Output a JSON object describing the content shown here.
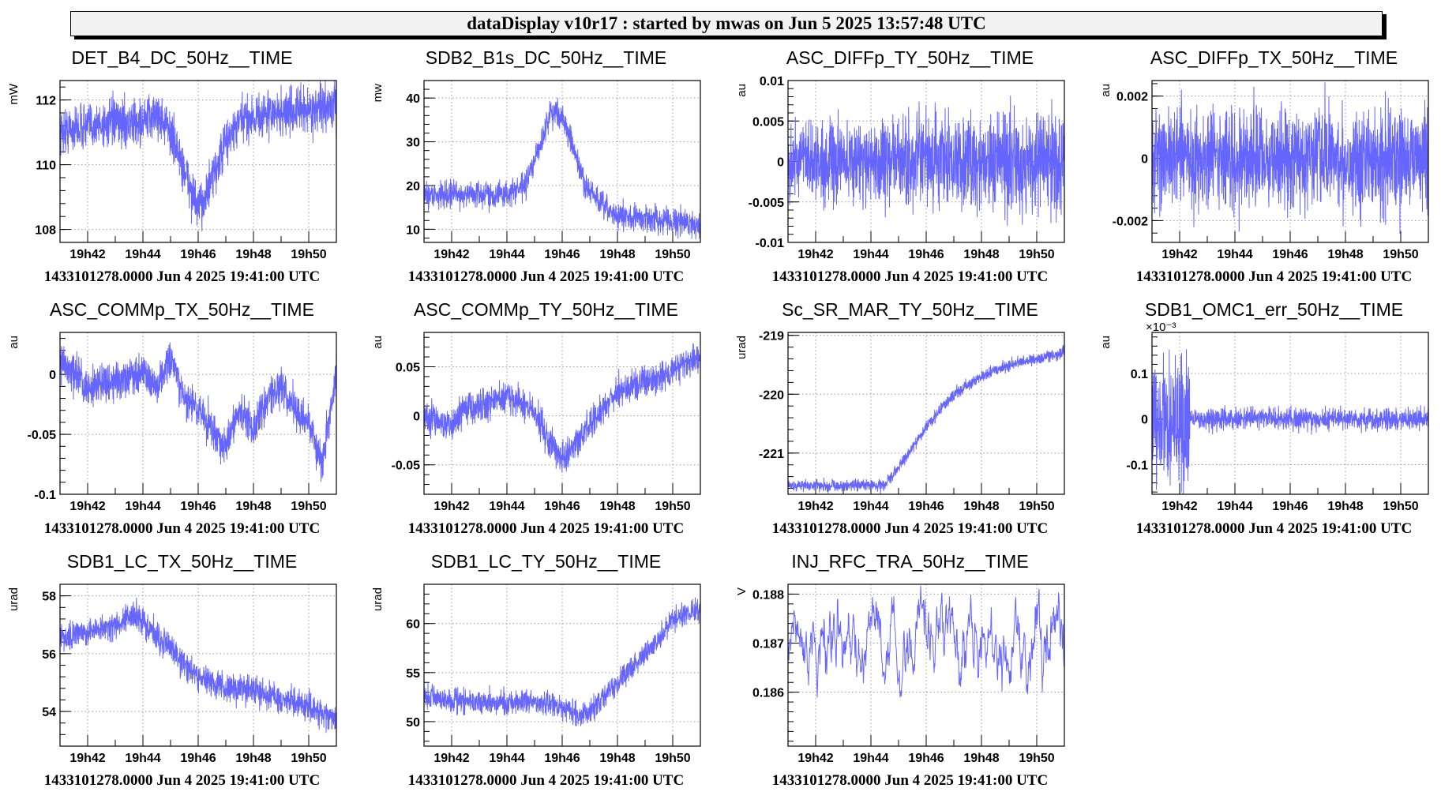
{
  "window_title": "dataDisplay v10r17 : started by mwas on Jun  5 2025 13:57:48 UTC",
  "line_color": "#6666ff",
  "chart_data": [
    {
      "type": "line",
      "title": "DET_B4_DC_50Hz__TIME",
      "ylabel": "mW",
      "footer": "1433101278.0000 Jun 4 2025 19:41:00 UTC",
      "xlim": [
        "19:41",
        "19:51"
      ],
      "xticks": [
        "19h42",
        "19h44",
        "19h46",
        "19h48",
        "19h50"
      ],
      "ylim": [
        107.6,
        112.6
      ],
      "yticks": [
        108,
        110,
        112
      ],
      "ytick_labels": [
        "108",
        "110",
        "112"
      ],
      "grid": true,
      "trend": {
        "t": [
          "19:41",
          "19:42",
          "19:43",
          "19:44",
          "19:44:30",
          "19:45",
          "19:45:30",
          "19:46",
          "19:46:30",
          "19:47",
          "19:47:30",
          "19:48",
          "19:49",
          "19:50",
          "19:51"
        ],
        "y": [
          111,
          111.2,
          111.3,
          111.3,
          111.6,
          111,
          109.8,
          108.6,
          109.5,
          110.7,
          111.3,
          111.5,
          111.6,
          111.7,
          111.8
        ]
      },
      "noise": 0.35
    },
    {
      "type": "line",
      "title": "SDB2_B1s_DC_50Hz__TIME",
      "ylabel": "mw",
      "footer": "1433101278.0000 Jun 4 2025 19:41:00 UTC",
      "xlim": [
        "19:41",
        "19:51"
      ],
      "xticks": [
        "19h42",
        "19h44",
        "19h46",
        "19h48",
        "19h50"
      ],
      "ylim": [
        7,
        44
      ],
      "yticks": [
        10,
        20,
        30,
        40
      ],
      "ytick_labels": [
        "10",
        "20",
        "30",
        "40"
      ],
      "grid": true,
      "trend": {
        "t": [
          "19:41",
          "19:43",
          "19:44",
          "19:44:40",
          "19:45:15",
          "19:45:35",
          "19:46",
          "19:46:25",
          "19:46:50",
          "19:47:30",
          "19:48",
          "19:49",
          "19:50",
          "19:51"
        ],
        "y": [
          18,
          18,
          18,
          20,
          30,
          37,
          36,
          28,
          20,
          15,
          13,
          12.5,
          12,
          11
        ]
      },
      "noise": 1.5
    },
    {
      "type": "line",
      "title": "ASC_DIFFp_TY_50Hz__TIME",
      "ylabel": "au",
      "footer": "1433101278.0000 Jun 4 2025 19:41:00 UTC",
      "xlim": [
        "19:41",
        "19:51"
      ],
      "xticks": [
        "19h42",
        "19h44",
        "19h46",
        "19h48",
        "19h50"
      ],
      "ylim": [
        -0.01,
        0.01
      ],
      "yticks": [
        -0.01,
        -0.005,
        0,
        0.005,
        0.01
      ],
      "ytick_labels": [
        "-0.01",
        "-0.005",
        "0",
        "0.005",
        "0.01"
      ],
      "grid": true,
      "trend": {
        "t": [
          "19:41",
          "19:51"
        ],
        "y": [
          0,
          0
        ]
      },
      "noise": 0.0022,
      "noise_end": 0.0032
    },
    {
      "type": "line",
      "title": "ASC_DIFFp_TX_50Hz__TIME",
      "ylabel": "au",
      "footer": "1433101278.0000 Jun 4 2025 19:41:00 UTC",
      "xlim": [
        "19:41",
        "19:51"
      ],
      "xticks": [
        "19h42",
        "19h44",
        "19h46",
        "19h48",
        "19h50"
      ],
      "ylim": [
        -0.0027,
        0.0025
      ],
      "yticks": [
        -0.002,
        0,
        0.002
      ],
      "ytick_labels": [
        "-0.002",
        "0",
        "0.002"
      ],
      "grid": true,
      "trend": {
        "t": [
          "19:41",
          "19:51"
        ],
        "y": [
          0,
          0
        ]
      },
      "noise": 0.0008
    },
    {
      "type": "line",
      "title": "ASC_COMMp_TX_50Hz__TIME",
      "ylabel": "au",
      "footer": "1433101278.0000 Jun 4 2025 19:41:00 UTC",
      "xlim": [
        "19:41",
        "19:51"
      ],
      "xticks": [
        "19h42",
        "19h44",
        "19h46",
        "19h48",
        "19h50"
      ],
      "ylim": [
        -0.1,
        0.035
      ],
      "yticks": [
        -0.1,
        -0.05,
        0
      ],
      "ytick_labels": [
        "-0.1",
        "-0.05",
        "0"
      ],
      "grid": true,
      "trend": {
        "t": [
          "19:41",
          "19:42",
          "19:43",
          "19:44",
          "19:44:30",
          "19:45",
          "19:45:30",
          "19:46",
          "19:46:30",
          "19:47",
          "19:47:30",
          "19:48",
          "19:48:30",
          "19:49",
          "19:49:30",
          "19:50",
          "19:50:30",
          "19:51"
        ],
        "y": [
          0.01,
          -0.01,
          -0.005,
          0.002,
          -0.01,
          0.012,
          -0.02,
          -0.03,
          -0.045,
          -0.06,
          -0.03,
          -0.045,
          -0.02,
          -0.01,
          -0.03,
          -0.04,
          -0.075,
          0.005
        ]
      },
      "noise": 0.008
    },
    {
      "type": "line",
      "title": "ASC_COMMp_TY_50Hz__TIME",
      "ylabel": "au",
      "footer": "1433101278.0000 Jun 4 2025 19:41:00 UTC",
      "xlim": [
        "19:41",
        "19:51"
      ],
      "xticks": [
        "19h42",
        "19h44",
        "19h46",
        "19h48",
        "19h50"
      ],
      "ylim": [
        -0.08,
        0.085
      ],
      "yticks": [
        -0.05,
        0,
        0.05
      ],
      "ytick_labels": [
        "-0.05",
        "0",
        "0.05"
      ],
      "grid": true,
      "trend": {
        "t": [
          "19:41",
          "19:42",
          "19:42:30",
          "19:43",
          "19:44",
          "19:45",
          "19:45:30",
          "19:46",
          "19:47",
          "19:48",
          "19:49",
          "19:50",
          "19:51"
        ],
        "y": [
          0,
          -0.01,
          0.01,
          0.01,
          0.02,
          0.005,
          -0.025,
          -0.045,
          -0.01,
          0.025,
          0.035,
          0.045,
          0.06
        ]
      },
      "noise": 0.008
    },
    {
      "type": "line",
      "title": "Sc_SR_MAR_TY_50Hz__TIME",
      "ylabel": "urad",
      "footer": "1433101278.0000 Jun 4 2025 19:41:00 UTC",
      "xlim": [
        "19:41",
        "19:51"
      ],
      "xticks": [
        "19h42",
        "19h44",
        "19h46",
        "19h48",
        "19h50"
      ],
      "ylim": [
        -221.7,
        -218.95
      ],
      "yticks": [
        -221,
        -220,
        -219
      ],
      "ytick_labels": [
        "-221",
        "-220",
        "-219"
      ],
      "grid": true,
      "trend": {
        "t": [
          "19:41",
          "19:44:30",
          "19:45",
          "19:46",
          "19:47",
          "19:48",
          "19:49",
          "19:50",
          "19:51"
        ],
        "y": [
          -221.55,
          -221.55,
          -221.25,
          -220.55,
          -220,
          -219.7,
          -219.5,
          -219.4,
          -219.3
        ]
      },
      "noise": 0.05
    },
    {
      "type": "line",
      "title": "SDB1_OMC1_err_50Hz__TIME",
      "ylabel": "au",
      "yscale_label": "×10⁻³",
      "footer": "1433101278.0000 Jun 4 2025 19:41:00 UTC",
      "xlim": [
        "19:41",
        "19:51"
      ],
      "xticks": [
        "19h42",
        "19h44",
        "19h46",
        "19h48",
        "19h50"
      ],
      "ylim": [
        -0.165,
        0.19
      ],
      "yticks": [
        -0.1,
        0,
        0.1
      ],
      "ytick_labels": [
        "-0.1",
        "0",
        "0.1"
      ],
      "grid": true,
      "trend": {
        "t": [
          "19:41",
          "19:51"
        ],
        "y": [
          0,
          0
        ]
      },
      "noise": 0.07,
      "noise_drop_at": "19:42:22",
      "noise_after": 0.012
    },
    {
      "type": "line",
      "title": "SDB1_LC_TX_50Hz__TIME",
      "ylabel": "urad",
      "footer": "1433101278.0000 Jun 4 2025 19:41:00 UTC",
      "xlim": [
        "19:41",
        "19:51"
      ],
      "xticks": [
        "19h42",
        "19h44",
        "19h46",
        "19h48",
        "19h50"
      ],
      "ylim": [
        52.8,
        58.4
      ],
      "yticks": [
        54,
        56,
        58
      ],
      "ytick_labels": [
        "54",
        "56",
        "58"
      ],
      "grid": true,
      "trend": {
        "t": [
          "19:41",
          "19:42",
          "19:43",
          "19:43:40",
          "19:44",
          "19:45",
          "19:46",
          "19:47",
          "19:48",
          "19:49",
          "19:50",
          "19:51"
        ],
        "y": [
          56.5,
          56.7,
          57,
          57.4,
          57.1,
          56.2,
          55.2,
          54.8,
          54.7,
          54.4,
          54.2,
          53.7
        ]
      },
      "noise": 0.25
    },
    {
      "type": "line",
      "title": "SDB1_LC_TY_50Hz__TIME",
      "ylabel": "urad",
      "footer": "1433101278.0000 Jun 4 2025 19:41:00 UTC",
      "xlim": [
        "19:41",
        "19:51"
      ],
      "xticks": [
        "19h42",
        "19h44",
        "19h46",
        "19h48",
        "19h50"
      ],
      "ylim": [
        47.5,
        64
      ],
      "yticks": [
        50,
        55,
        60
      ],
      "ytick_labels": [
        "50",
        "55",
        "60"
      ],
      "grid": true,
      "trend": {
        "t": [
          "19:41",
          "19:43",
          "19:45",
          "19:46",
          "19:46:40",
          "19:47",
          "19:48",
          "19:49",
          "19:49:30",
          "19:50",
          "19:51"
        ],
        "y": [
          52.5,
          52,
          52,
          51.5,
          50.5,
          51,
          54,
          57,
          58.5,
          60.5,
          61.5
        ]
      },
      "noise": 0.6
    },
    {
      "type": "line",
      "title": "INJ_RFC_TRA_50Hz__TIME",
      "ylabel": "V",
      "footer": "1433101278.0000 Jun 4 2025 19:41:00 UTC",
      "xlim": [
        "19:41",
        "19:51"
      ],
      "xticks": [
        "19h42",
        "19h44",
        "19h46",
        "19h48",
        "19h50"
      ],
      "ylim": [
        0.1849,
        0.1882
      ],
      "yticks": [
        0.186,
        0.187,
        0.188
      ],
      "ytick_labels": [
        "0.186",
        "0.187",
        "0.188"
      ],
      "grid": true,
      "trend": {
        "t": [
          "19:41",
          "19:51"
        ],
        "y": [
          0.18695,
          0.18705
        ]
      },
      "noise": 0.00028,
      "oscillating": true
    }
  ]
}
